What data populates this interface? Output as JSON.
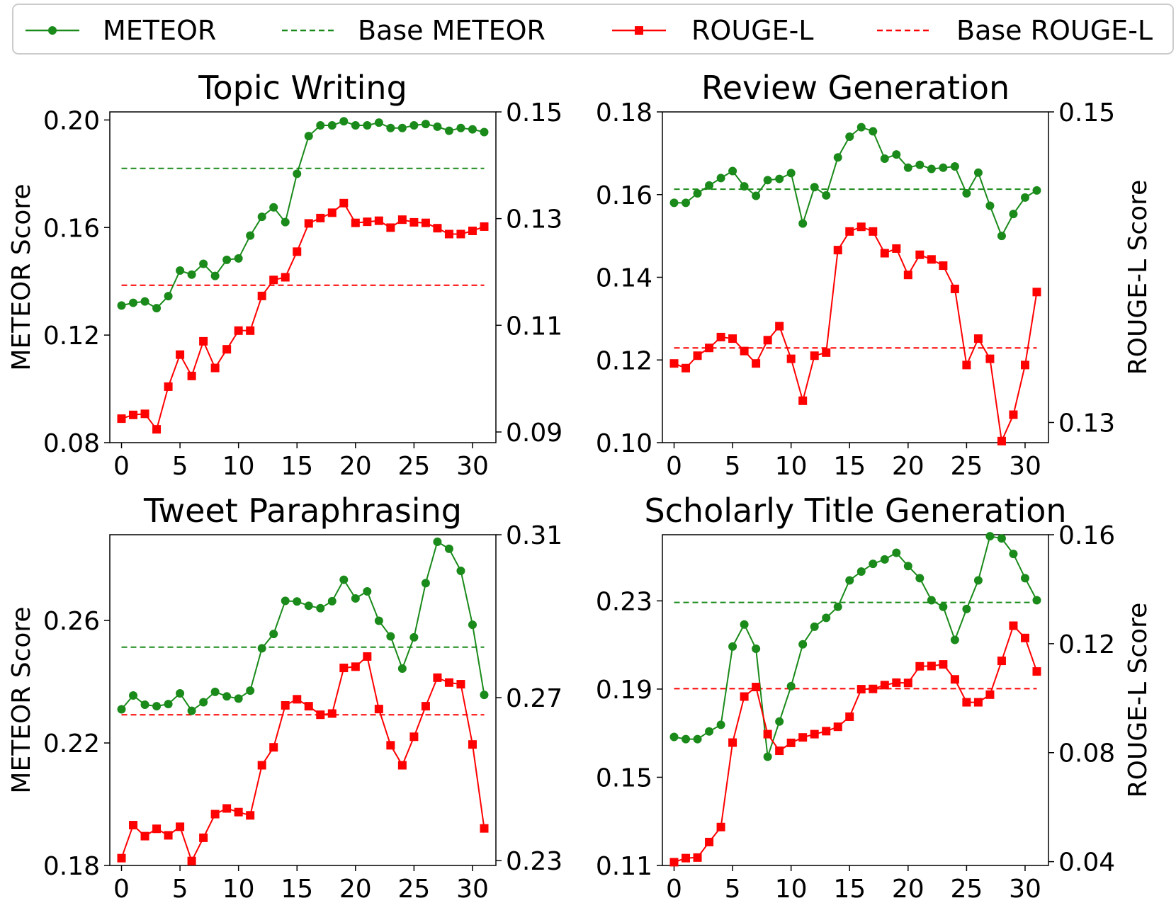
{
  "legend": {
    "entries": [
      {
        "label": "METEOR",
        "color": "#1a8a1a",
        "style": "solid",
        "marker": "circle"
      },
      {
        "label": "Base METEOR",
        "color": "#1a8a1a",
        "style": "dashed",
        "marker": "none"
      },
      {
        "label": "ROUGE-L",
        "color": "#ff0000",
        "style": "solid",
        "marker": "square"
      },
      {
        "label": "Base ROUGE-L",
        "color": "#ff0000",
        "style": "dashed",
        "marker": "none"
      }
    ]
  },
  "colors": {
    "meteor": "#1a8a1a",
    "rouge": "#ff0000"
  },
  "chart_data": [
    {
      "type": "line",
      "title": "Topic Writing",
      "ylabel": "METEOR Score",
      "ylabel_right": "",
      "x": [
        0,
        1,
        2,
        3,
        4,
        5,
        6,
        7,
        8,
        9,
        10,
        11,
        12,
        13,
        14,
        15,
        16,
        17,
        18,
        19,
        20,
        21,
        22,
        23,
        24,
        25,
        26,
        27,
        28,
        29,
        30,
        31
      ],
      "xticks": [
        0,
        5,
        10,
        15,
        20,
        25,
        30
      ],
      "xlim": [
        -1,
        32
      ],
      "ylim_left": [
        0.08,
        0.203
      ],
      "yticks_left": [
        0.08,
        0.12,
        0.16,
        0.2
      ],
      "yticklabels_left": [
        "0.08",
        "0.12",
        "0.16",
        "0.20"
      ],
      "ylim_right": [
        0.088,
        0.15
      ],
      "yticks_right": [
        0.09,
        0.11,
        0.13,
        0.15
      ],
      "yticklabels_right": [
        "0.09",
        "0.11",
        "0.13",
        "0.15"
      ],
      "series": [
        {
          "name": "METEOR",
          "axis": "left",
          "values": [
            0.131,
            0.132,
            0.1325,
            0.13,
            0.1345,
            0.144,
            0.1425,
            0.1465,
            0.142,
            0.148,
            0.1485,
            0.157,
            0.164,
            0.1675,
            0.162,
            0.18,
            0.194,
            0.198,
            0.198,
            0.1995,
            0.198,
            0.198,
            0.199,
            0.197,
            0.197,
            0.198,
            0.1985,
            0.1975,
            0.196,
            0.197,
            0.1965,
            0.1955
          ]
        },
        {
          "name": "ROUGE-L",
          "axis": "right",
          "values": [
            0.0925,
            0.0932,
            0.0934,
            0.0905,
            0.0985,
            0.1045,
            0.1005,
            0.107,
            0.102,
            0.1055,
            0.109,
            0.109,
            0.1155,
            0.1185,
            0.119,
            0.1238,
            0.1291,
            0.1301,
            0.1311,
            0.1329,
            0.1292,
            0.1294,
            0.1296,
            0.1283,
            0.1298,
            0.1293,
            0.1292,
            0.1282,
            0.1271,
            0.1271,
            0.1277,
            0.1285
          ]
        }
      ],
      "baselines": [
        {
          "name": "Base METEOR",
          "axis": "left",
          "value": 0.182
        },
        {
          "name": "Base ROUGE-L",
          "axis": "right",
          "value": 0.1175
        }
      ]
    },
    {
      "type": "line",
      "title": "Review Generation",
      "ylabel": "",
      "ylabel_right": "ROUGE-L Score",
      "x": [
        0,
        1,
        2,
        3,
        4,
        5,
        6,
        7,
        8,
        9,
        10,
        11,
        12,
        13,
        14,
        15,
        16,
        17,
        18,
        19,
        20,
        21,
        22,
        23,
        24,
        25,
        26,
        27,
        28,
        29,
        30,
        31
      ],
      "xticks": [
        0,
        5,
        10,
        15,
        20,
        25,
        30
      ],
      "xlim": [
        -1,
        32
      ],
      "ylim_left": [
        0.1,
        0.18
      ],
      "yticks_left": [
        0.1,
        0.12,
        0.14,
        0.16,
        0.18
      ],
      "yticklabels_left": [
        "0.10",
        "0.12",
        "0.14",
        "0.16",
        "0.18"
      ],
      "ylim_right": [
        0.1287,
        0.15
      ],
      "yticks_right": [
        0.13,
        0.15
      ],
      "yticklabels_right": [
        "0.13",
        "0.15"
      ],
      "series": [
        {
          "name": "METEOR",
          "axis": "left",
          "values": [
            0.158,
            0.158,
            0.1603,
            0.1622,
            0.164,
            0.1657,
            0.162,
            0.1597,
            0.1635,
            0.1638,
            0.1652,
            0.153,
            0.1618,
            0.1598,
            0.169,
            0.174,
            0.1763,
            0.1753,
            0.1687,
            0.1697,
            0.1665,
            0.1672,
            0.1662,
            0.1665,
            0.1668,
            0.1603,
            0.1653,
            0.1573,
            0.15,
            0.1553,
            0.1593,
            0.161
          ]
        },
        {
          "name": "ROUGE-L",
          "axis": "right",
          "values": [
            0.1338,
            0.1335,
            0.1343,
            0.1348,
            0.1355,
            0.1354,
            0.1346,
            0.1338,
            0.1353,
            0.1362,
            0.1341,
            0.1314,
            0.1343,
            0.1345,
            0.1411,
            0.1423,
            0.1426,
            0.1423,
            0.1409,
            0.1412,
            0.1395,
            0.1408,
            0.1405,
            0.1401,
            0.1386,
            0.1337,
            0.1354,
            0.1341,
            0.1288,
            0.1305,
            0.1337,
            0.1384
          ]
        }
      ],
      "baselines": [
        {
          "name": "Base METEOR",
          "axis": "left",
          "value": 0.1613
        },
        {
          "name": "Base ROUGE-L",
          "axis": "right",
          "value": 0.1348
        }
      ]
    },
    {
      "type": "line",
      "title": "Tweet Paraphrasing",
      "ylabel": "METEOR Score",
      "ylabel_right": "",
      "x": [
        0,
        1,
        2,
        3,
        4,
        5,
        6,
        7,
        8,
        9,
        10,
        11,
        12,
        13,
        14,
        15,
        16,
        17,
        18,
        19,
        20,
        21,
        22,
        23,
        24,
        25,
        26,
        27,
        28,
        29,
        30,
        31
      ],
      "xticks": [
        0,
        5,
        10,
        15,
        20,
        25,
        30
      ],
      "xlim": [
        -1,
        32
      ],
      "ylim_left": [
        0.18,
        0.288
      ],
      "yticks_left": [
        0.18,
        0.22,
        0.26
      ],
      "yticklabels_left": [
        "0.18",
        "0.22",
        "0.26"
      ],
      "ylim_right": [
        0.2288,
        0.31
      ],
      "yticks_right": [
        0.23,
        0.27,
        0.31
      ],
      "yticklabels_right": [
        "0.23",
        "0.27",
        "0.31"
      ],
      "series": [
        {
          "name": "METEOR",
          "axis": "left",
          "values": [
            0.231,
            0.2355,
            0.2325,
            0.232,
            0.2327,
            0.2362,
            0.2305,
            0.2333,
            0.2367,
            0.2352,
            0.2345,
            0.2371,
            0.2509,
            0.2556,
            0.2664,
            0.2662,
            0.2648,
            0.264,
            0.2663,
            0.2733,
            0.2672,
            0.2695,
            0.2599,
            0.2548,
            0.2443,
            0.2545,
            0.2722,
            0.2857,
            0.2834,
            0.2762,
            0.2586,
            0.2357
          ]
        },
        {
          "name": "ROUGE-L",
          "axis": "right",
          "values": [
            0.2306,
            0.2387,
            0.236,
            0.2378,
            0.2362,
            0.2383,
            0.2299,
            0.2356,
            0.2414,
            0.2428,
            0.2419,
            0.2411,
            0.2534,
            0.2578,
            0.2681,
            0.2696,
            0.2679,
            0.2658,
            0.2661,
            0.2773,
            0.2776,
            0.2801,
            0.2672,
            0.2583,
            0.2534,
            0.2604,
            0.2679,
            0.2749,
            0.2737,
            0.2733,
            0.2585,
            0.2379
          ]
        }
      ],
      "baselines": [
        {
          "name": "Base METEOR",
          "axis": "left",
          "value": 0.2513
        },
        {
          "name": "Base ROUGE-L",
          "axis": "right",
          "value": 0.2658
        }
      ]
    },
    {
      "type": "line",
      "title": "Scholarly Title Generation",
      "ylabel": "",
      "ylabel_right": "ROUGE-L Score",
      "x": [
        0,
        1,
        2,
        3,
        4,
        5,
        6,
        7,
        8,
        9,
        10,
        11,
        12,
        13,
        14,
        15,
        16,
        17,
        18,
        19,
        20,
        21,
        22,
        23,
        24,
        25,
        26,
        27,
        28,
        29,
        30,
        31
      ],
      "xticks": [
        0,
        5,
        10,
        15,
        20,
        25,
        30
      ],
      "xlim": [
        -1,
        32
      ],
      "ylim_left": [
        0.11,
        0.26
      ],
      "yticks_left": [
        0.11,
        0.15,
        0.19,
        0.23
      ],
      "yticklabels_left": [
        "0.11",
        "0.15",
        "0.19",
        "0.23"
      ],
      "ylim_right": [
        0.0386,
        0.16
      ],
      "yticks_right": [
        0.04,
        0.08,
        0.12,
        0.16
      ],
      "yticklabels_right": [
        "0.04",
        "0.08",
        "0.12",
        "0.16"
      ],
      "series": [
        {
          "name": "METEOR",
          "axis": "left",
          "values": [
            0.1683,
            0.1673,
            0.1673,
            0.1708,
            0.1738,
            0.2093,
            0.2193,
            0.2083,
            0.1593,
            0.1753,
            0.1913,
            0.2103,
            0.2183,
            0.2223,
            0.2273,
            0.2393,
            0.2433,
            0.2468,
            0.2488,
            0.2518,
            0.2458,
            0.2403,
            0.2303,
            0.2273,
            0.2123,
            0.2263,
            0.2393,
            0.2593,
            0.2583,
            0.2513,
            0.2403,
            0.2303
          ]
        },
        {
          "name": "ROUGE-L",
          "axis": "right",
          "values": [
            0.0398,
            0.0413,
            0.0415,
            0.0472,
            0.0527,
            0.0837,
            0.1006,
            0.1041,
            0.0868,
            0.0807,
            0.0836,
            0.0856,
            0.0868,
            0.0879,
            0.0895,
            0.0932,
            0.1033,
            0.1034,
            0.1048,
            0.1057,
            0.1056,
            0.1117,
            0.1118,
            0.1124,
            0.1069,
            0.0985,
            0.0985,
            0.1013,
            0.1137,
            0.1266,
            0.1221,
            0.1098
          ]
        }
      ],
      "baselines": [
        {
          "name": "Base METEOR",
          "axis": "left",
          "value": 0.2293
        },
        {
          "name": "Base ROUGE-L",
          "axis": "right",
          "value": 0.1035
        }
      ]
    }
  ]
}
